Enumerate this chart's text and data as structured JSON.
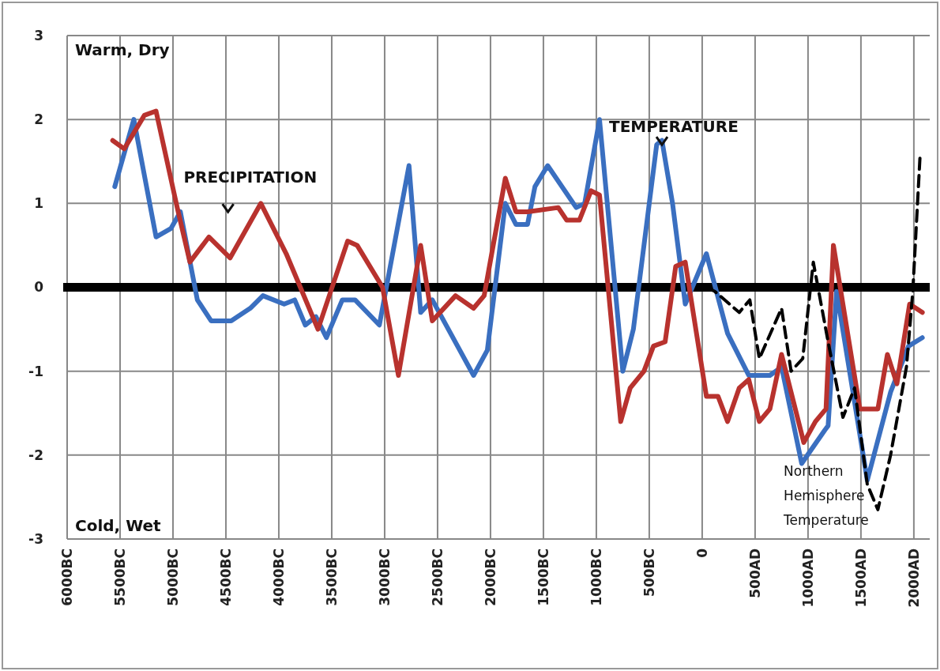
{
  "chart_data": {
    "type": "line",
    "xlim": [
      -6000,
      2150
    ],
    "ylim": [
      -3,
      3
    ],
    "xticks": [
      {
        "value": -6000,
        "label": "6000BC"
      },
      {
        "value": -5500,
        "label": "5500BC"
      },
      {
        "value": -5000,
        "label": "5000BC"
      },
      {
        "value": -4500,
        "label": "4500BC"
      },
      {
        "value": -4000,
        "label": "4000BC"
      },
      {
        "value": -3500,
        "label": "3500BC"
      },
      {
        "value": -3000,
        "label": "3000BC"
      },
      {
        "value": -2500,
        "label": "2500BC"
      },
      {
        "value": -2000,
        "label": "2000BC"
      },
      {
        "value": -1500,
        "label": "1500BC"
      },
      {
        "value": -1000,
        "label": "1000BC"
      },
      {
        "value": -500,
        "label": "500BC"
      },
      0,
      {
        "value": 500,
        "label": "500AD"
      },
      {
        "value": 1000,
        "label": "1000AD"
      },
      {
        "value": 1500,
        "label": "1500AD"
      },
      {
        "value": 2000,
        "label": "2000AD"
      }
    ],
    "yticks": [
      -3,
      -2,
      -1,
      0,
      1,
      2,
      3
    ],
    "grid": true,
    "annotations": [
      "Warm, Dry",
      "Cold, Wet"
    ],
    "ref_lines": [
      {
        "axis": "y",
        "value": 0,
        "color": "#000000"
      }
    ],
    "series": [
      {
        "name": "TEMPERATURE",
        "color": "#3a6fc0",
        "line_style": "solid",
        "x": [
          -5550,
          -5370,
          -5160,
          -5020,
          -4930,
          -4770,
          -4640,
          -4450,
          -4270,
          -4150,
          -3950,
          -3850,
          -3750,
          -3650,
          -3550,
          -3400,
          -3280,
          -3050,
          -2770,
          -2660,
          -2550,
          -2160,
          -2030,
          -1860,
          -1760,
          -1650,
          -1580,
          -1460,
          -1190,
          -1110,
          -970,
          -750,
          -650,
          -430,
          -380,
          -280,
          -160,
          40,
          240,
          440,
          640,
          750,
          940,
          1160,
          1190,
          1270,
          1560,
          1780,
          1950,
          2080
        ],
        "values": [
          1.2,
          2.0,
          0.6,
          0.7,
          0.9,
          -0.15,
          -0.4,
          -0.4,
          -0.25,
          -0.1,
          -0.2,
          -0.15,
          -0.45,
          -0.35,
          -0.6,
          -0.15,
          -0.15,
          -0.45,
          1.45,
          -0.3,
          -0.15,
          -1.05,
          -0.75,
          1.0,
          0.75,
          0.75,
          1.2,
          1.45,
          0.95,
          1.0,
          2.0,
          -1.0,
          -0.5,
          1.7,
          1.75,
          1.0,
          -0.2,
          0.4,
          -0.55,
          -1.05,
          -1.05,
          -0.95,
          -2.1,
          -1.7,
          -1.65,
          -0.05,
          -2.3,
          -1.25,
          -0.7,
          -0.6
        ]
      },
      {
        "name": "PRECIPITATION",
        "color": "#b8322e",
        "line_style": "solid",
        "x": [
          -5570,
          -5460,
          -5270,
          -5160,
          -4960,
          -4840,
          -4660,
          -4460,
          -4170,
          -3930,
          -3630,
          -3350,
          -3260,
          -3020,
          -2870,
          -2660,
          -2550,
          -2330,
          -2160,
          -2060,
          -1860,
          -1760,
          -1650,
          -1360,
          -1280,
          -1160,
          -1050,
          -970,
          -770,
          -680,
          -550,
          -460,
          -350,
          -250,
          -160,
          40,
          150,
          240,
          350,
          440,
          540,
          640,
          750,
          960,
          1070,
          1170,
          1240,
          1490,
          1660,
          1750,
          1840,
          1960,
          2080
        ],
        "values": [
          1.75,
          1.65,
          2.05,
          2.1,
          0.95,
          0.3,
          0.6,
          0.35,
          1.0,
          0.4,
          -0.5,
          0.55,
          0.5,
          0.0,
          -1.05,
          0.5,
          -0.4,
          -0.1,
          -0.25,
          -0.1,
          1.3,
          0.9,
          0.9,
          0.95,
          0.8,
          0.8,
          1.15,
          1.1,
          -1.6,
          -1.2,
          -1.0,
          -0.7,
          -0.65,
          0.25,
          0.3,
          -1.3,
          -1.3,
          -1.6,
          -1.2,
          -1.1,
          -1.6,
          -1.45,
          -0.8,
          -1.85,
          -1.6,
          -1.45,
          0.5,
          -1.45,
          -1.45,
          -0.8,
          -1.15,
          -0.2,
          -0.3
        ]
      },
      {
        "name": "Northern Hemisphere Temperature",
        "color": "#000000",
        "line_style": "dashed",
        "x": [
          40,
          120,
          350,
          450,
          540,
          750,
          840,
          950,
          1050,
          1190,
          1330,
          1440,
          1560,
          1660,
          1780,
          1930,
          1990,
          2060
        ],
        "values": [
          0.0,
          -0.05,
          -0.3,
          -0.15,
          -0.85,
          -0.25,
          -1.0,
          -0.85,
          0.3,
          -0.65,
          -1.55,
          -1.2,
          -2.35,
          -2.65,
          -2.0,
          -0.95,
          -0.05,
          1.6
        ]
      }
    ]
  }
}
